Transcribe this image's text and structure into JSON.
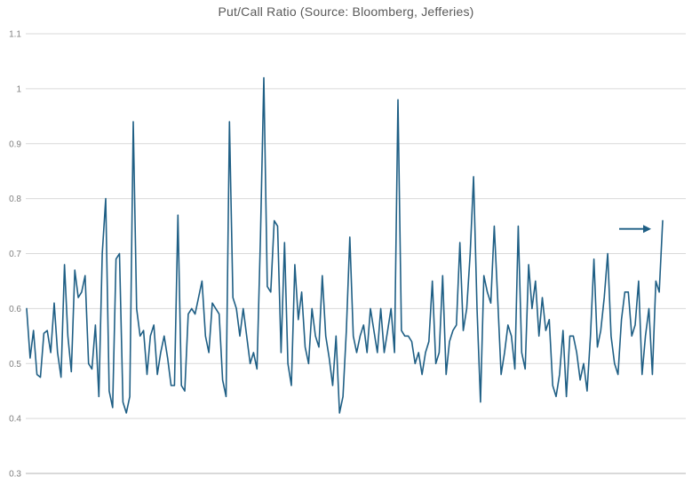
{
  "chart_data": {
    "type": "line",
    "title": "Put/Call Ratio (Source: Bloomberg, Jefferies)",
    "xlabel": "",
    "ylabel": "",
    "ylim": [
      0.3,
      1.1
    ],
    "ytick_labels": [
      "1.1",
      "1",
      "0.9",
      "0.8",
      "0.7",
      "0.6",
      "0.5",
      "0.4",
      "0.3"
    ],
    "yticks": [
      1.1,
      1.0,
      0.9,
      0.8,
      0.7,
      0.6,
      0.5,
      0.4,
      0.3
    ],
    "grid": true,
    "legend_position": "none",
    "x_axis_labels_visible": false,
    "series": [
      {
        "name": "Put/Call Ratio",
        "color": "#1f5f85",
        "values": [
          0.6,
          0.51,
          0.56,
          0.48,
          0.475,
          0.555,
          0.56,
          0.52,
          0.61,
          0.52,
          0.475,
          0.68,
          0.55,
          0.485,
          0.67,
          0.62,
          0.63,
          0.66,
          0.5,
          0.49,
          0.57,
          0.44,
          0.7,
          0.8,
          0.45,
          0.42,
          0.69,
          0.7,
          0.43,
          0.41,
          0.44,
          0.94,
          0.6,
          0.55,
          0.56,
          0.48,
          0.55,
          0.57,
          0.48,
          0.52,
          0.55,
          0.51,
          0.46,
          0.46,
          0.77,
          0.46,
          0.45,
          0.59,
          0.6,
          0.59,
          0.62,
          0.65,
          0.55,
          0.52,
          0.61,
          0.6,
          0.59,
          0.47,
          0.44,
          0.94,
          0.62,
          0.6,
          0.55,
          0.6,
          0.55,
          0.5,
          0.52,
          0.49,
          0.73,
          1.02,
          0.64,
          0.63,
          0.76,
          0.75,
          0.52,
          0.72,
          0.5,
          0.46,
          0.68,
          0.58,
          0.63,
          0.53,
          0.5,
          0.6,
          0.55,
          0.53,
          0.66,
          0.55,
          0.51,
          0.46,
          0.55,
          0.41,
          0.44,
          0.56,
          0.73,
          0.55,
          0.52,
          0.55,
          0.57,
          0.52,
          0.6,
          0.56,
          0.52,
          0.6,
          0.52,
          0.56,
          0.6,
          0.52,
          0.98,
          0.56,
          0.55,
          0.55,
          0.54,
          0.5,
          0.52,
          0.48,
          0.52,
          0.54,
          0.65,
          0.5,
          0.52,
          0.66,
          0.48,
          0.54,
          0.56,
          0.57,
          0.72,
          0.56,
          0.6,
          0.7,
          0.84,
          0.6,
          0.43,
          0.66,
          0.63,
          0.61,
          0.75,
          0.62,
          0.48,
          0.52,
          0.57,
          0.55,
          0.49,
          0.75,
          0.52,
          0.49,
          0.68,
          0.6,
          0.65,
          0.55,
          0.62,
          0.56,
          0.58,
          0.46,
          0.44,
          0.48,
          0.56,
          0.44,
          0.55,
          0.55,
          0.52,
          0.47,
          0.5,
          0.45,
          0.55,
          0.69,
          0.53,
          0.56,
          0.62,
          0.7,
          0.55,
          0.5,
          0.48,
          0.58,
          0.63,
          0.63,
          0.55,
          0.57,
          0.65,
          0.48,
          0.55,
          0.6,
          0.48,
          0.65,
          0.63,
          0.76
        ]
      }
    ],
    "annotations": [
      {
        "type": "arrow",
        "direction": "right",
        "points_to": "final data point",
        "y_value": 0.745
      }
    ]
  },
  "colors": {
    "background": "#ffffff",
    "title_text": "#595959",
    "axis_text": "#7f7f7f",
    "gridline": "#d9d9d9",
    "bottom_gridline": "#b3b3b3",
    "line": "#1f5f85",
    "arrow": "#1f5f85"
  }
}
